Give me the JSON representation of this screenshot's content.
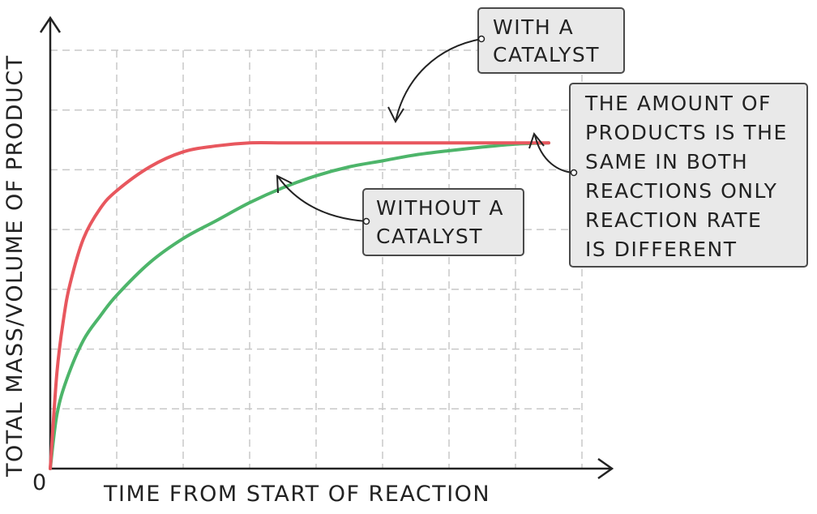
{
  "chart_data": {
    "type": "line",
    "xlabel": "TIME FROM START OF REACTION",
    "ylabel": "TOTAL MASS/VOLUME OF PRODUCT",
    "origin_label": "0",
    "series": [
      {
        "name": "WITH A CATALYST",
        "color": "#e8575e",
        "x": [
          0,
          0.1,
          0.2,
          0.3,
          0.5,
          0.75,
          1.0,
          1.5,
          2.0,
          2.5,
          3.0,
          3.5,
          4.0,
          5.0,
          6.0,
          7.0,
          7.5
        ],
        "y": [
          0,
          1.6,
          2.5,
          3.1,
          3.85,
          4.35,
          4.65,
          5.05,
          5.3,
          5.4,
          5.45,
          5.45,
          5.45,
          5.45,
          5.45,
          5.45,
          5.45
        ]
      },
      {
        "name": "WITHOUT A CATALYST",
        "color": "#4db56a",
        "x": [
          0,
          0.1,
          0.25,
          0.5,
          0.75,
          1.0,
          1.5,
          2.0,
          2.5,
          3.0,
          3.5,
          4.0,
          4.5,
          5.0,
          5.5,
          6.0,
          6.5,
          7.0,
          7.5
        ],
        "y": [
          0,
          0.9,
          1.5,
          2.15,
          2.55,
          2.9,
          3.45,
          3.85,
          4.15,
          4.45,
          4.7,
          4.9,
          5.05,
          5.15,
          5.25,
          5.32,
          5.38,
          5.43,
          5.45
        ]
      }
    ],
    "xlim": [
      0,
      8
    ],
    "ylim": [
      0,
      7
    ],
    "grid": true,
    "annotations": [
      {
        "lines": [
          "WITH A",
          "CATALYST"
        ]
      },
      {
        "lines": [
          "THE AMOUNT OF",
          "PRODUCTS IS THE",
          "SAME IN BOTH",
          "REACTIONS ONLY",
          "REACTION RATE",
          "IS DIFFERENT"
        ]
      },
      {
        "lines": [
          "WITHOUT A",
          "CATALYST"
        ]
      }
    ]
  }
}
